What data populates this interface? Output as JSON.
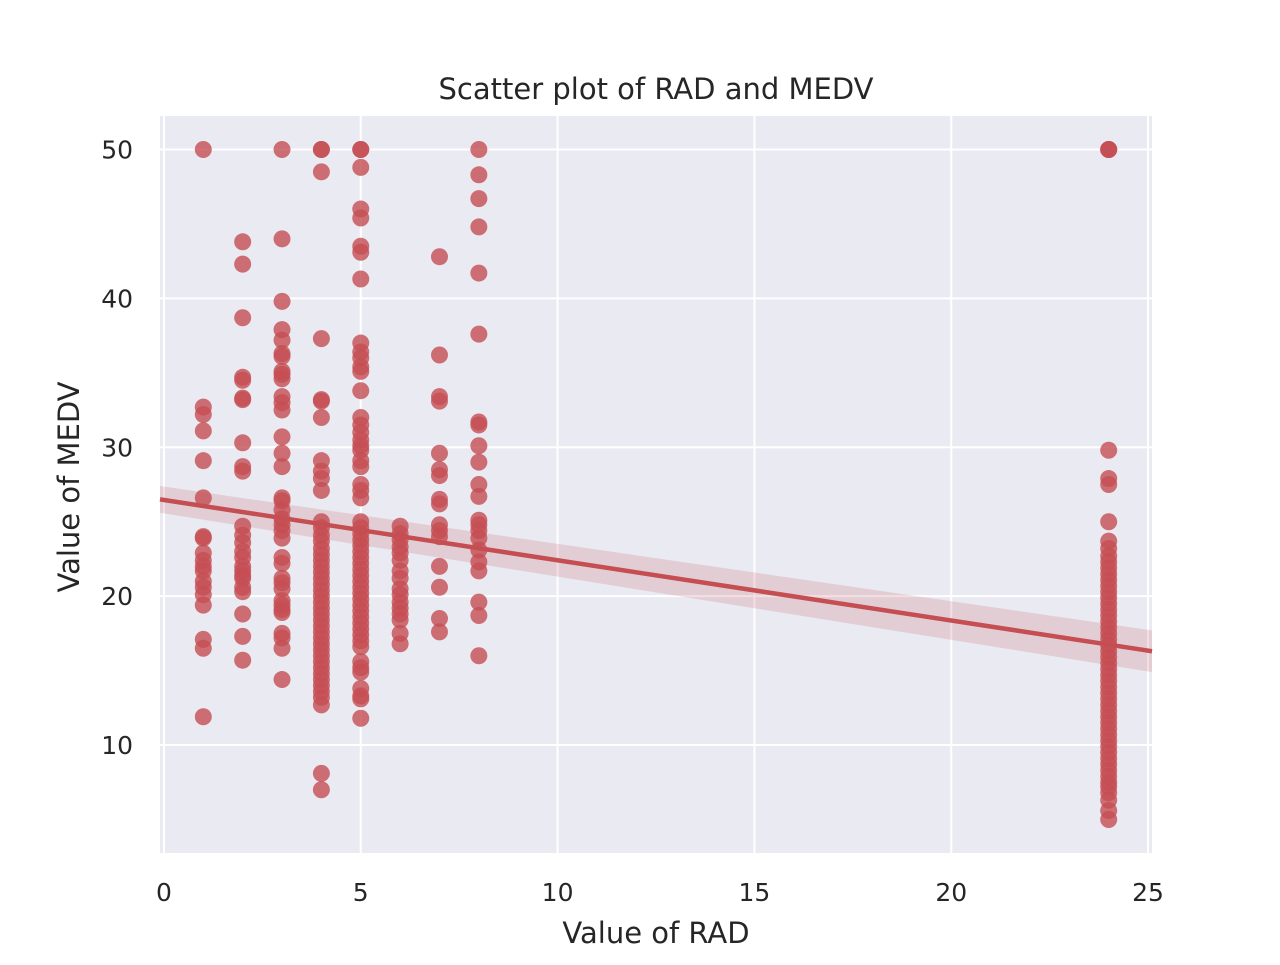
{
  "chart_data": {
    "type": "scatter",
    "title": "Scatter plot of RAD and MEDV",
    "xlabel": "Value of RAD",
    "ylabel": "Value of MEDV",
    "xlim": [
      -0.1,
      25.1
    ],
    "ylim": [
      2.75,
      52.25
    ],
    "xticks": [
      0,
      5,
      10,
      15,
      20,
      25
    ],
    "yticks": [
      10,
      20,
      30,
      40,
      50
    ],
    "xtick_labels": [
      "0",
      "5",
      "10",
      "15",
      "20",
      "25"
    ],
    "ytick_labels": [
      "10",
      "20",
      "30",
      "40",
      "50"
    ],
    "grid": true,
    "legend": "none",
    "colors": {
      "points": "#c44e52",
      "line": "#c44e52",
      "band": "#c44e52",
      "plot_background": "#eaeaf2",
      "grid": "#ffffff"
    },
    "regression": {
      "x": [
        -0.1,
        25.1
      ],
      "y": [
        26.5,
        16.3
      ],
      "ci_lower": [
        25.6,
        14.9
      ],
      "ci_upper": [
        27.4,
        17.7
      ]
    },
    "points": [
      {
        "x": 1,
        "ys": [
          50.0,
          32.7,
          32.2,
          31.1,
          29.1,
          26.6,
          24.0,
          23.9,
          22.9,
          22.4,
          22.0,
          21.7,
          21.0,
          20.6,
          20.1,
          19.4,
          17.1,
          16.5,
          11.9
        ]
      },
      {
        "x": 2,
        "ys": [
          43.8,
          42.3,
          38.7,
          34.7,
          34.5,
          33.3,
          33.2,
          30.3,
          28.7,
          28.4,
          24.7,
          24.1,
          23.6,
          23.0,
          22.6,
          22.0,
          21.7,
          21.4,
          21.2,
          20.6,
          20.3,
          18.8,
          17.3,
          15.7
        ]
      },
      {
        "x": 3,
        "ys": [
          50.0,
          44.0,
          39.8,
          37.9,
          37.2,
          36.3,
          36.1,
          35.1,
          34.9,
          34.6,
          33.4,
          33.0,
          32.5,
          30.7,
          29.6,
          28.7,
          26.6,
          26.4,
          25.8,
          25.2,
          24.8,
          24.4,
          23.9,
          22.6,
          22.2,
          21.2,
          20.9,
          20.5,
          19.7,
          19.4,
          19.1,
          18.9,
          17.5,
          17.2,
          16.5,
          14.4
        ]
      },
      {
        "x": 4,
        "ys": [
          50.0,
          50.0,
          48.5,
          37.3,
          33.2,
          33.1,
          32.0,
          29.1,
          28.4,
          27.9,
          27.1,
          25.0,
          24.6,
          24.1,
          23.7,
          23.2,
          22.8,
          22.4,
          22.0,
          21.6,
          21.2,
          20.8,
          20.4,
          20.0,
          19.6,
          19.2,
          18.8,
          18.4,
          18.0,
          17.6,
          17.2,
          16.8,
          16.4,
          16.0,
          15.6,
          15.2,
          14.8,
          14.4,
          14.0,
          13.6,
          13.2,
          12.7,
          8.1,
          7.0
        ]
      },
      {
        "x": 5,
        "ys": [
          50.0,
          50.0,
          48.8,
          46.0,
          45.4,
          43.5,
          43.1,
          41.3,
          37.0,
          36.4,
          36.0,
          35.4,
          35.1,
          33.8,
          32.0,
          31.5,
          31.0,
          30.5,
          30.1,
          29.8,
          29.1,
          28.7,
          27.5,
          27.1,
          26.6,
          25.0,
          24.6,
          24.2,
          23.8,
          23.4,
          23.0,
          22.6,
          22.2,
          21.8,
          21.4,
          21.0,
          20.6,
          20.2,
          19.8,
          19.4,
          19.0,
          18.6,
          18.2,
          17.8,
          17.4,
          17.0,
          16.6,
          15.6,
          15.2,
          14.9,
          13.8,
          13.3,
          13.1,
          11.8
        ]
      },
      {
        "x": 6,
        "ys": [
          24.7,
          24.2,
          23.8,
          23.3,
          22.9,
          22.4,
          21.7,
          21.2,
          20.5,
          20.1,
          19.6,
          19.2,
          18.8,
          18.4,
          17.5,
          16.8
        ]
      },
      {
        "x": 7,
        "ys": [
          42.8,
          36.2,
          33.4,
          33.1,
          29.6,
          28.5,
          28.1,
          26.5,
          26.2,
          24.8,
          24.4,
          24.0,
          22.0,
          20.6,
          18.5,
          17.6
        ]
      },
      {
        "x": 8,
        "ys": [
          50.0,
          48.3,
          46.7,
          44.8,
          41.7,
          37.6,
          31.7,
          31.5,
          30.1,
          29.0,
          27.5,
          26.7,
          25.1,
          24.8,
          24.4,
          23.9,
          23.1,
          22.3,
          21.7,
          19.6,
          18.7,
          16.0
        ]
      },
      {
        "x": 24,
        "ys": [
          50.0,
          50.0,
          50.0,
          29.8,
          27.9,
          27.5,
          25.0,
          23.7,
          23.2,
          22.7,
          22.3,
          21.9,
          21.5,
          21.1,
          20.7,
          20.3,
          19.9,
          19.5,
          19.1,
          18.7,
          18.3,
          17.9,
          17.5,
          17.1,
          16.7,
          16.3,
          15.9,
          15.5,
          15.1,
          14.7,
          14.3,
          13.9,
          13.5,
          13.1,
          12.7,
          12.3,
          11.9,
          11.5,
          11.1,
          10.7,
          10.3,
          9.9,
          9.5,
          9.1,
          8.7,
          8.3,
          7.9,
          7.5,
          7.2,
          6.8,
          6.3,
          5.6,
          5.0
        ]
      }
    ]
  }
}
